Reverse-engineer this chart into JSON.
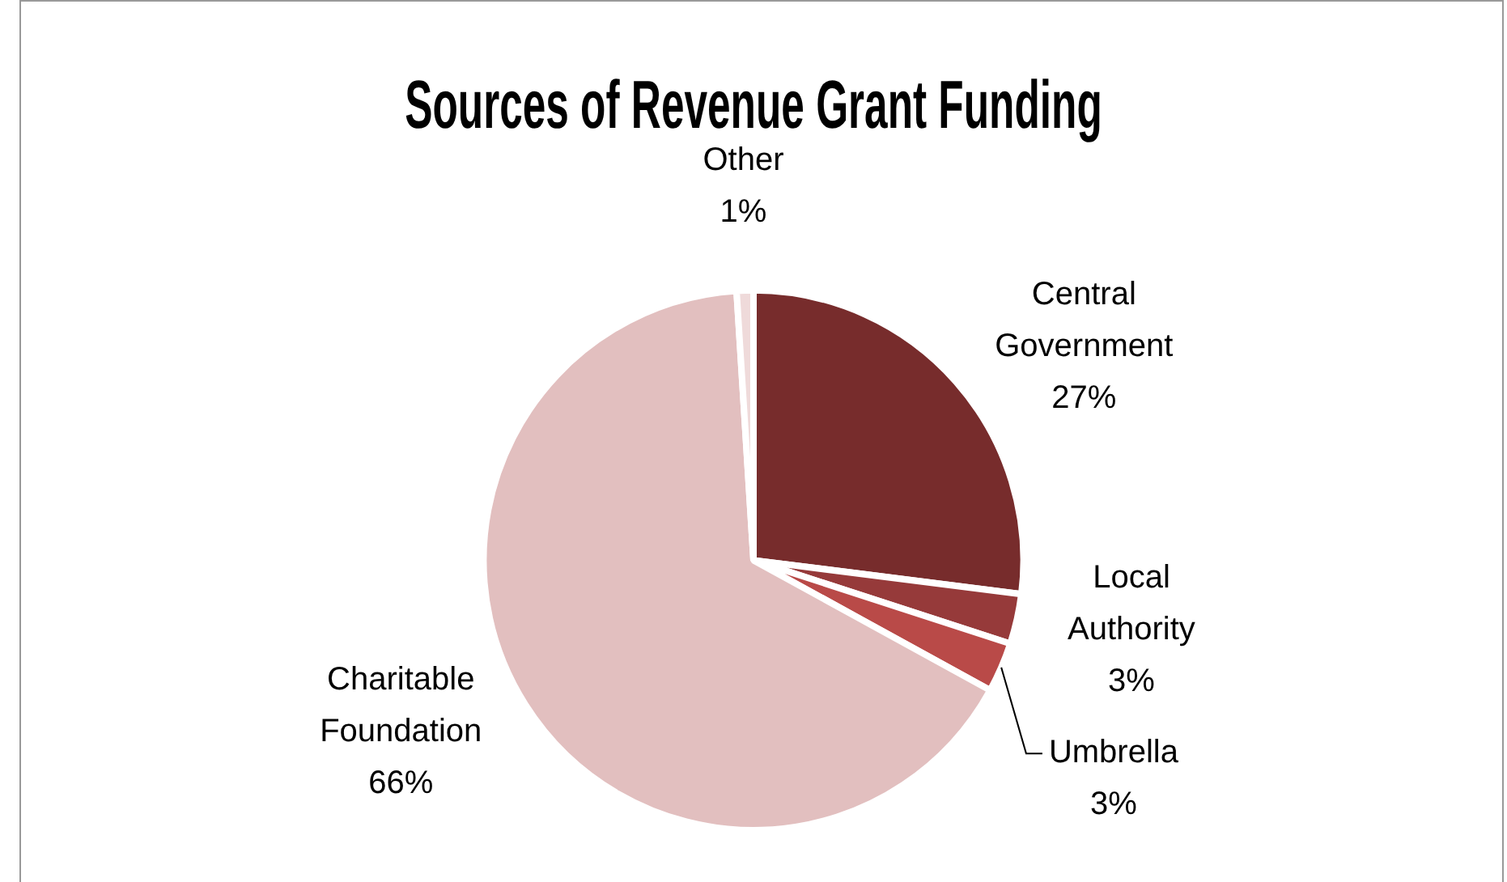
{
  "chart_data": {
    "type": "pie",
    "title": "Sources of Revenue Grant Funding",
    "categories": [
      "Central Government",
      "Local Authority",
      "Umbrella",
      "Charitable Foundation",
      "Other"
    ],
    "values": [
      27,
      3,
      3,
      66,
      1
    ],
    "value_labels": [
      "27%",
      "3%",
      "3%",
      "66%",
      "1%"
    ],
    "colors": [
      "#772c2c",
      "#963a3a",
      "#b94a48",
      "#e2bfbf",
      "#efdada"
    ],
    "legend": false
  }
}
